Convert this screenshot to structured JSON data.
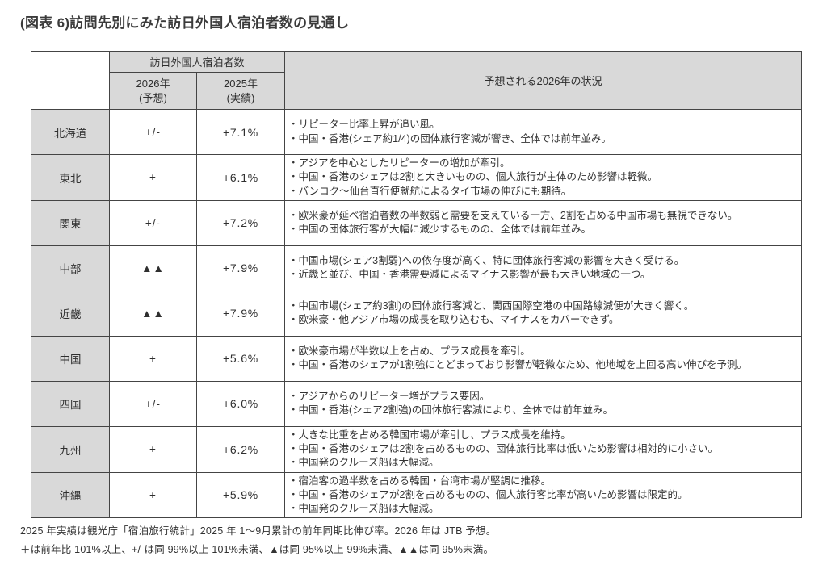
{
  "title": "(図表 6)訪問先別にみた訪日外国人宿泊者数の見通し",
  "table": {
    "header": {
      "group": "訪日外国人宿泊者数",
      "col_2026": {
        "year": "2026年",
        "note": "(予想)"
      },
      "col_2025": {
        "year": "2025年",
        "note": "(実績)"
      },
      "outlook": "予想される2026年の状況"
    },
    "rows": [
      {
        "region": "北海道",
        "forecast_2026": "+/-",
        "actual_2025": "+7.1%",
        "notes": [
          "・リピーター比率上昇が追い風。",
          "・中国・香港(シェア約1/4)の団体旅行客減が響き、全体では前年並み。"
        ]
      },
      {
        "region": "東北",
        "forecast_2026": "+",
        "actual_2025": "+6.1%",
        "notes": [
          "・アジアを中心としたリピーターの増加が牽引。",
          "・中国・香港のシェアは2割と大きいものの、個人旅行が主体のため影響は軽微。",
          "・バンコク〜仙台直行便就航によるタイ市場の伸びにも期待。"
        ]
      },
      {
        "region": "関東",
        "forecast_2026": "+/-",
        "actual_2025": "+7.2%",
        "notes": [
          "・欧米豪が延べ宿泊者数の半数弱と需要を支えている一方、2割を占める中国市場も無視できない。",
          "・中国の団体旅行客が大幅に減少するものの、全体では前年並み。"
        ]
      },
      {
        "region": "中部",
        "forecast_2026": "▲▲",
        "actual_2025": "+7.9%",
        "notes": [
          "・中国市場(シェア3割弱)への依存度が高く、特に団体旅行客減の影響を大きく受ける。",
          "・近畿と並び、中国・香港需要減によるマイナス影響が最も大きい地域の一つ。"
        ]
      },
      {
        "region": "近畿",
        "forecast_2026": "▲▲",
        "actual_2025": "+7.9%",
        "notes": [
          "・中国市場(シェア約3割)の団体旅行客減と、関西国際空港の中国路線減便が大きく響く。",
          "・欧米豪・他アジア市場の成長を取り込むも、マイナスをカバーできず。"
        ]
      },
      {
        "region": "中国",
        "forecast_2026": "+",
        "actual_2025": "+5.6%",
        "notes": [
          "・欧米豪市場が半数以上を占め、プラス成長を牽引。",
          "・中国・香港のシェアが1割強にとどまっており影響が軽微なため、他地域を上回る高い伸びを予測。"
        ]
      },
      {
        "region": "四国",
        "forecast_2026": "+/-",
        "actual_2025": "+6.0%",
        "notes": [
          "・アジアからのリピーター増がプラス要因。",
          "・中国・香港(シェア2割強)の団体旅行客減により、全体では前年並み。"
        ]
      },
      {
        "region": "九州",
        "forecast_2026": "+",
        "actual_2025": "+6.2%",
        "notes": [
          "・大きな比重を占める韓国市場が牽引し、プラス成長を維持。",
          "・中国・香港のシェアは2割を占めるものの、団体旅行比率は低いため影響は相対的に小さい。",
          "・中国発のクルーズ船は大幅減。"
        ]
      },
      {
        "region": "沖縄",
        "forecast_2026": "+",
        "actual_2025": "+5.9%",
        "notes": [
          "・宿泊客の過半数を占める韓国・台湾市場が堅調に推移。",
          "・中国・香港のシェアが2割を占めるものの、個人旅行客比率が高いため影響は限定的。",
          "・中国発のクルーズ船は大幅減。"
        ]
      }
    ]
  },
  "footnotes": [
    "2025 年実績は観光庁「宿泊旅行統計」2025 年 1〜9月累計の前年同期比伸び率。2026 年は JTB 予想。",
    "＋は前年比 101%以上、+/-は同 99%以上 101%未満、▲は同 95%以上 99%未満、▲▲は同 95%未満。"
  ],
  "colors": {
    "header_fill": "#d9d9d9",
    "border": "#444444",
    "text": "#333333"
  }
}
